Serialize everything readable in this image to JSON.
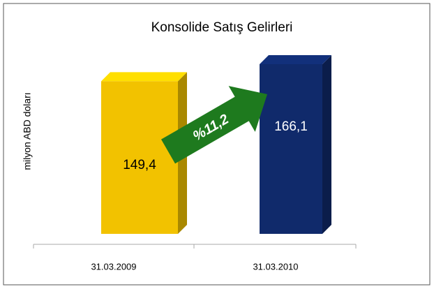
{
  "chart_data": {
    "type": "bar3d",
    "title": "Konsolide Satış Gelirleri",
    "ylabel": "milyon ABD doları",
    "categories": [
      "31.03.2009",
      "31.03.2010"
    ],
    "values": [
      149.4,
      166.1
    ],
    "value_labels": [
      "149,4",
      "166,1"
    ],
    "colors": [
      "#f2c200",
      "#102a6b"
    ],
    "annotation": "%11,2",
    "annotation_color": "#1e7a1e"
  }
}
